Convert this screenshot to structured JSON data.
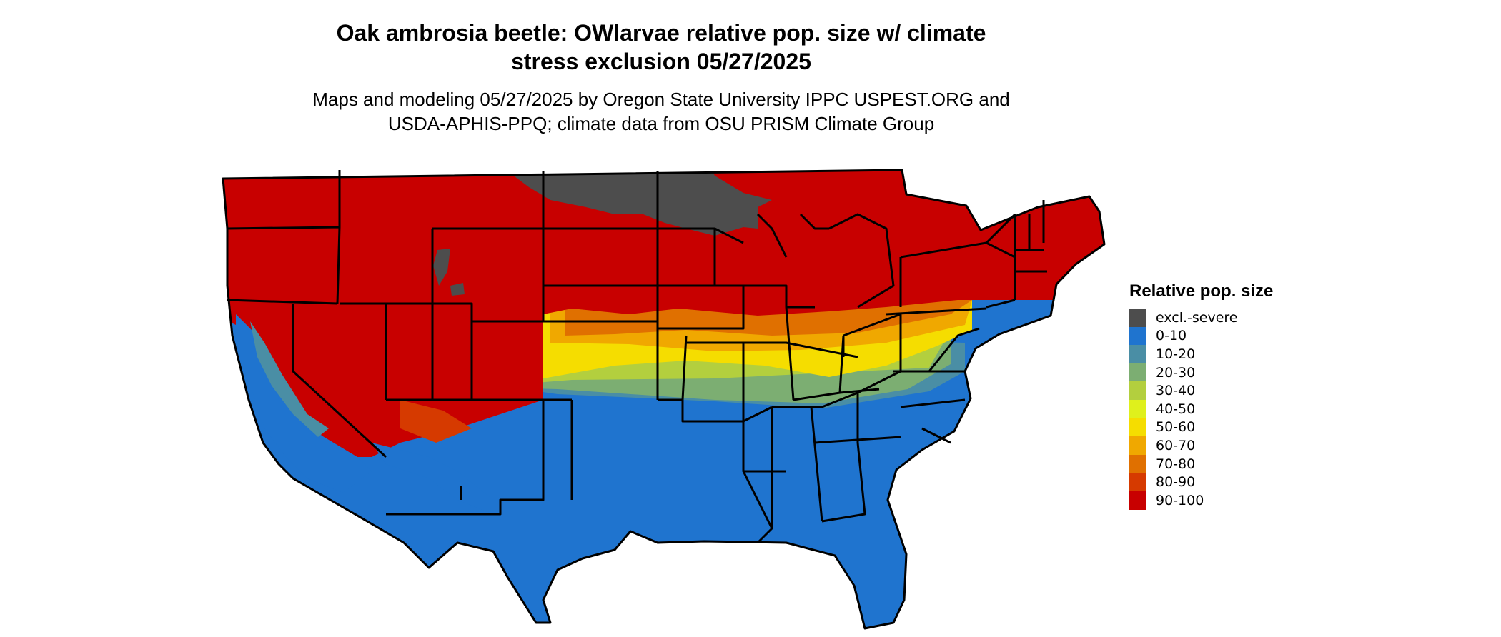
{
  "title": {
    "line1": "Oak ambrosia beetle: OWlarvae relative pop. size w/ climate",
    "line2": "stress exclusion 05/27/2025"
  },
  "subtitle": {
    "line1": "Maps and modeling 05/27/2025 by Oregon State University IPPC USPEST.ORG and",
    "line2": "USDA-APHIS-PPQ; climate data from OSU PRISM Climate Group"
  },
  "legend": {
    "title": "Relative pop. size",
    "items": [
      {
        "label": "excl.-severe",
        "color": "#4d4d4d"
      },
      {
        "label": "0-10",
        "color": "#1f74cf"
      },
      {
        "label": "10-20",
        "color": "#4a8ea5"
      },
      {
        "label": "20-30",
        "color": "#7cae72"
      },
      {
        "label": "30-40",
        "color": "#b3cf3e"
      },
      {
        "label": "40-50",
        "color": "#dff01c"
      },
      {
        "label": "50-60",
        "color": "#f5dd00"
      },
      {
        "label": "60-70",
        "color": "#f0a800"
      },
      {
        "label": "70-80",
        "color": "#e07000"
      },
      {
        "label": "80-90",
        "color": "#d63a00"
      },
      {
        "label": "90-100",
        "color": "#c80000"
      }
    ]
  }
}
